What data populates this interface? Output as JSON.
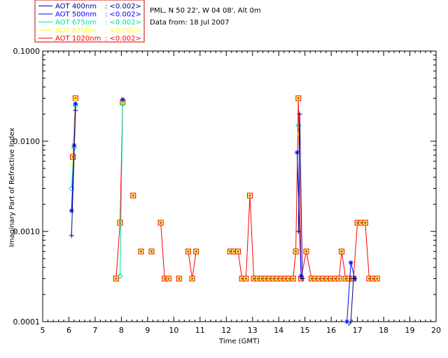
{
  "header": {
    "site_line": "PML, N 50 22', W 04 08', Alt 0m",
    "date_line": "Data from: 18 Jul 2007"
  },
  "legend": {
    "entries": [
      {
        "label": "AOT  400nm",
        "value_text": ": <0.002>",
        "color": "#000080"
      },
      {
        "label": "AOT  500nm",
        "value_text": ": <0.002>",
        "color": "#0000ff"
      },
      {
        "label": "AOT  675nm",
        "value_text": ": <0.002>",
        "color": "#00e0a0"
      },
      {
        "label": "AOT  870nm",
        "value_text": ": <0.002>",
        "color": "#ffff00"
      },
      {
        "label": "AOT 1020nm",
        "value_text": ": <0.002>",
        "color": "#ff0000"
      }
    ],
    "box_color": "#cc0000"
  },
  "chart_data": {
    "type": "line",
    "xlabel": "Time (GMT)",
    "ylabel": "Imaginary Part of Refractive Index",
    "x_ticks": [
      "5",
      "6",
      "7",
      "8",
      "9",
      "10",
      "11",
      "12",
      "13",
      "14",
      "15",
      "16",
      "17",
      "18",
      "19",
      "20"
    ],
    "y_ticks": [
      "0.0001",
      "0.0010",
      "0.0100",
      "0.1000"
    ],
    "xlim": [
      5,
      20
    ],
    "ylim": [
      0.0001,
      0.1
    ],
    "y_scale": "log",
    "grid": false,
    "series": [
      {
        "name": "AOT 1020nm",
        "color": "#ff0000",
        "marker": "square",
        "segments": [
          [
            [
              6.15,
              0.0067
            ],
            [
              6.25,
              0.03
            ]
          ],
          [
            [
              7.8,
              0.0003
            ],
            [
              7.95,
              0.00125
            ],
            [
              8.05,
              0.027
            ]
          ],
          [
            [
              8.45,
              0.0025
            ]
          ],
          [
            [
              8.75,
              0.0006
            ]
          ],
          [
            [
              9.15,
              0.0006
            ]
          ],
          [
            [
              9.5,
              0.00125
            ],
            [
              9.65,
              0.0003
            ],
            [
              9.8,
              0.0003
            ]
          ],
          [
            [
              10.2,
              0.0003
            ]
          ],
          [
            [
              10.55,
              0.0006
            ],
            [
              10.7,
              0.0003
            ],
            [
              10.85,
              0.0006
            ]
          ],
          [
            [
              12.15,
              0.0006
            ],
            [
              12.3,
              0.0006
            ],
            [
              12.45,
              0.0006
            ],
            [
              12.6,
              0.0003
            ],
            [
              12.75,
              0.0003
            ],
            [
              12.9,
              0.0025
            ],
            [
              13.05,
              0.0003
            ],
            [
              13.2,
              0.0003
            ],
            [
              13.35,
              0.0003
            ],
            [
              13.5,
              0.0003
            ],
            [
              13.65,
              0.0003
            ],
            [
              13.8,
              0.0003
            ],
            [
              13.95,
              0.0003
            ],
            [
              14.1,
              0.0003
            ],
            [
              14.25,
              0.0003
            ],
            [
              14.4,
              0.0003
            ],
            [
              14.55,
              0.0003
            ],
            [
              14.65,
              0.0006
            ],
            [
              14.75,
              0.03
            ],
            [
              14.85,
              0.0003
            ],
            [
              15.05,
              0.0006
            ],
            [
              15.25,
              0.0003
            ],
            [
              15.4,
              0.0003
            ],
            [
              15.55,
              0.0003
            ],
            [
              15.7,
              0.0003
            ],
            [
              15.85,
              0.0003
            ],
            [
              16.0,
              0.0003
            ],
            [
              16.15,
              0.0003
            ],
            [
              16.3,
              0.0003
            ],
            [
              16.4,
              0.0006
            ],
            [
              16.55,
              0.0003
            ],
            [
              16.7,
              0.0003
            ],
            [
              16.85,
              0.0003
            ],
            [
              17.0,
              0.00125
            ],
            [
              17.15,
              0.00125
            ],
            [
              17.3,
              0.00125
            ],
            [
              17.45,
              0.0003
            ],
            [
              17.6,
              0.0003
            ],
            [
              17.75,
              0.0003
            ]
          ]
        ]
      },
      {
        "name": "AOT  870nm",
        "color": "#ffff00",
        "marker": "plus",
        "segments": [
          [
            [
              6.15,
              0.0055
            ],
            [
              6.25,
              0.028
            ]
          ],
          [
            [
              8.05,
              0.027
            ]
          ],
          [
            [
              14.75,
              0.012
            ]
          ]
        ]
      },
      {
        "name": "AOT  675nm",
        "color": "#00e0a0",
        "marker": "diamond",
        "segments": [
          [
            [
              6.1,
              0.003
            ],
            [
              6.2,
              0.0085
            ],
            [
              6.25,
              0.025
            ]
          ],
          [
            [
              7.95,
              0.00032
            ],
            [
              8.05,
              0.026
            ]
          ],
          [
            [
              14.75,
              0.015
            ]
          ]
        ]
      },
      {
        "name": "AOT  500nm",
        "color": "#0000ff",
        "marker": "asterisk",
        "segments": [
          [
            [
              6.1,
              0.0017
            ],
            [
              6.2,
              0.009
            ],
            [
              6.25,
              0.026
            ]
          ],
          [
            [
              8.05,
              0.029
            ]
          ],
          [
            [
              14.7,
              0.0075
            ],
            [
              14.85,
              0.00032
            ]
          ],
          [
            [
              16.6,
              0.0001
            ],
            [
              16.75,
              0.00045
            ],
            [
              16.9,
              0.0003
            ]
          ]
        ]
      },
      {
        "name": "AOT  400nm",
        "color": "#000080",
        "marker": "plus",
        "segments": [
          [
            [
              6.1,
              0.0009
            ],
            [
              6.25,
              0.022
            ]
          ],
          [
            [
              14.75,
              0.001
            ],
            [
              14.8,
              0.02
            ],
            [
              14.9,
              0.0003
            ]
          ],
          [
            [
              16.65,
              9e-05
            ],
            [
              16.75,
              0.0001
            ],
            [
              16.85,
              0.0003
            ]
          ]
        ]
      }
    ]
  }
}
